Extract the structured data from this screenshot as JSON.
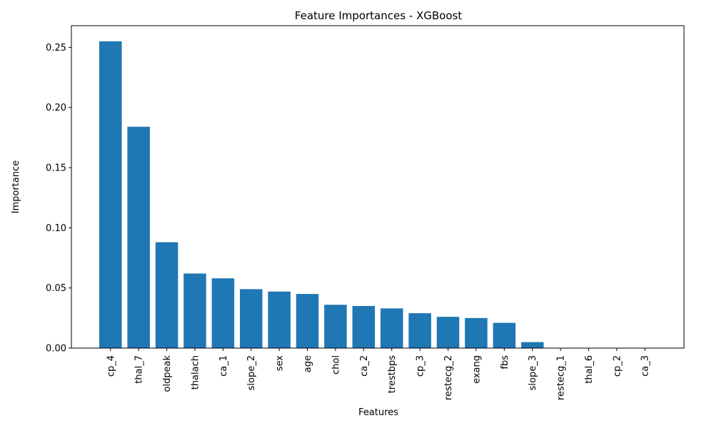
{
  "chart_data": {
    "type": "bar",
    "title": "Feature Importances - XGBoost",
    "xlabel": "Features",
    "ylabel": "Importance",
    "ylim": [
      0,
      0.268
    ],
    "yticks": [
      0.0,
      0.05,
      0.1,
      0.15,
      0.2,
      0.25
    ],
    "ytick_labels": [
      "0.00",
      "0.05",
      "0.10",
      "0.15",
      "0.20",
      "0.25"
    ],
    "bar_color": "#1f77b4",
    "grid": false,
    "categories": [
      "cp_4",
      "thal_7",
      "oldpeak",
      "thalach",
      "ca_1",
      "slope_2",
      "sex",
      "age",
      "chol",
      "ca_2",
      "trestbps",
      "cp_3",
      "restecg_2",
      "exang",
      "fbs",
      "slope_3",
      "restecg_1",
      "thal_6",
      "cp_2",
      "ca_3"
    ],
    "values": [
      0.255,
      0.184,
      0.088,
      0.062,
      0.058,
      0.049,
      0.047,
      0.045,
      0.036,
      0.035,
      0.033,
      0.029,
      0.026,
      0.025,
      0.021,
      0.005,
      0.0,
      0.0,
      0.0,
      0.0
    ]
  }
}
